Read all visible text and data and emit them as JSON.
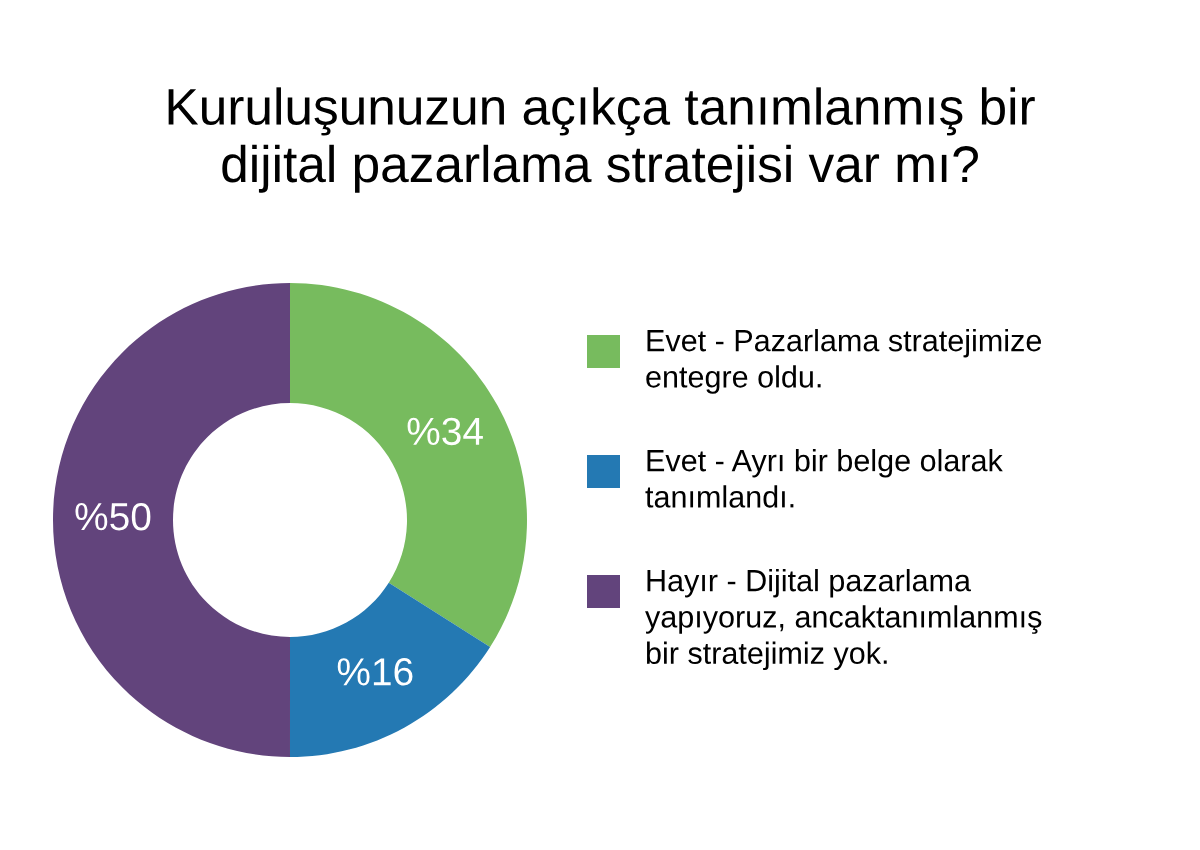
{
  "chart_data": {
    "type": "donut",
    "title": "Kuruluşunuzun açıkça tanımlanmış bir\ndijital pazarlama stratejisi var mı?",
    "categories": [
      "Evet - Pazarlama stratejimize\nentegre oldu.",
      "Evet - Ayrı bir belge olarak\ntanımlandı.",
      "Hayır - Dijital pazarlama\nyapıyoruz, ancaktanımlanmış\nbir stratejimiz yok."
    ],
    "values": [
      34,
      16,
      50
    ],
    "colors": [
      "#77bb5e",
      "#2479b3",
      "#62447c"
    ],
    "value_labels": [
      "%34",
      "%16",
      "%50"
    ],
    "legend": "right"
  }
}
